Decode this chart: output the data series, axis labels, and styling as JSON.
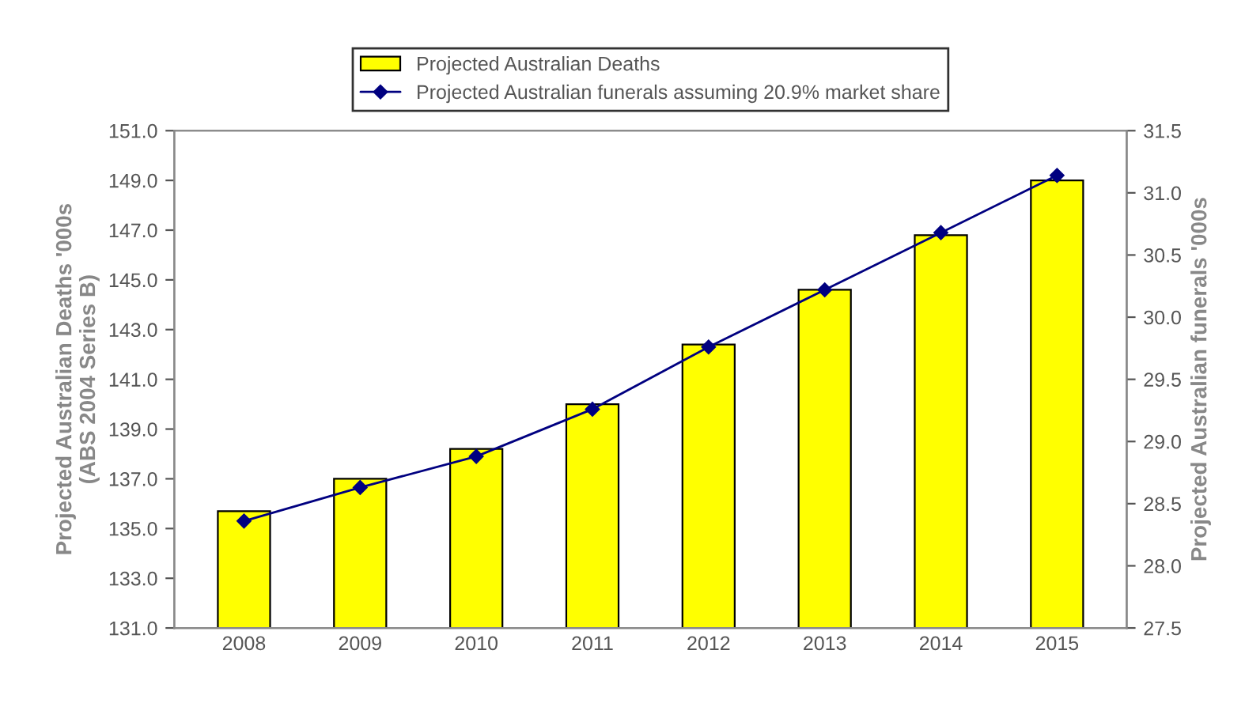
{
  "chart_data": {
    "type": "bar",
    "categories": [
      "2008",
      "2009",
      "2010",
      "2011",
      "2012",
      "2013",
      "2014",
      "2015"
    ],
    "ylabel": "Projected Australian Deaths '000s\n(ABS 2004 Series B)",
    "y2label": "Projected Australian funerals '000s",
    "series": [
      {
        "name": "Projected Australian Deaths",
        "color": "#ffff00",
        "values": [
          135.7,
          137.0,
          138.2,
          140.0,
          142.4,
          144.6,
          146.8,
          149.0
        ]
      },
      {
        "name": "Projected Australian funerals assuming 20.9% market share",
        "type": "line",
        "axis": "y2",
        "color": "#000080",
        "marker": "diamond",
        "values": [
          28.36,
          28.63,
          28.88,
          29.26,
          29.76,
          30.22,
          30.68,
          31.14
        ]
      }
    ],
    "ylim": [
      131,
      151
    ],
    "yticks": [
      {
        "value": 131,
        "label": "131.0"
      },
      {
        "value": 133,
        "label": "133.0"
      },
      {
        "value": 135,
        "label": "135.0"
      },
      {
        "value": 137,
        "label": "137.0"
      },
      {
        "value": 139,
        "label": "139.0"
      },
      {
        "value": 141,
        "label": "141.0"
      },
      {
        "value": 143,
        "label": "143.0"
      },
      {
        "value": 145,
        "label": "145.0"
      },
      {
        "value": 147,
        "label": "147.0"
      },
      {
        "value": 149,
        "label": "149.0"
      },
      {
        "value": 151,
        "label": "151.0"
      }
    ],
    "y2lim": [
      27.5,
      31.5
    ],
    "y2ticks": [
      27.5,
      {
        "value": 28,
        "label": "28.0"
      },
      28.5,
      {
        "value": 29,
        "label": "29.0"
      },
      29.5,
      {
        "value": 30,
        "label": "30.0"
      },
      30.5,
      {
        "value": 31,
        "label": "31.0"
      },
      31.5
    ],
    "grid": false,
    "legend": "top"
  }
}
